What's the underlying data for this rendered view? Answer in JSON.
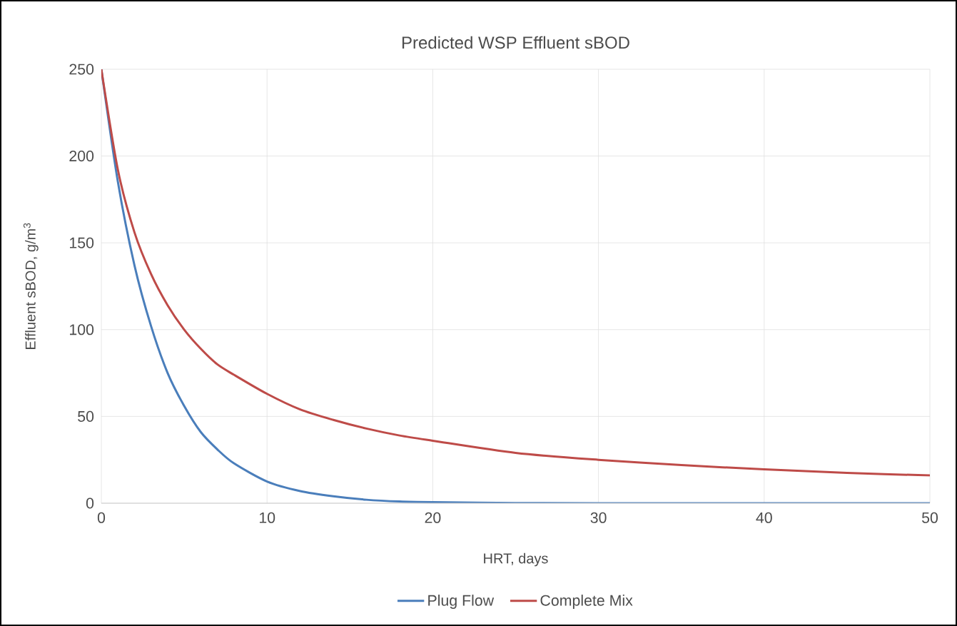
{
  "chart_data": {
    "type": "line",
    "title": "Predicted WSP Effluent sBOD",
    "xlabel": "HRT, days",
    "ylabel": "Effluent sBOD, g/m$^{3}$",
    "xlim": [
      0,
      50
    ],
    "ylim": [
      0,
      250
    ],
    "xticks": [
      0,
      10,
      20,
      30,
      40,
      50
    ],
    "yticks": [
      0,
      50,
      100,
      150,
      200,
      250
    ],
    "grid": true,
    "legend": "bottom",
    "marker": "none",
    "line_style": "solid",
    "series": [
      {
        "name": "Plug Flow",
        "color": "#4a7ebb",
        "x": [
          0,
          1,
          2,
          3,
          4,
          5,
          6,
          7,
          8,
          10,
          12,
          14,
          16,
          18,
          20,
          25,
          30,
          40,
          50
        ],
        "values": [
          250,
          185,
          137,
          102,
          75,
          56,
          41,
          31,
          23,
          12.5,
          7,
          4,
          2,
          1,
          0.6,
          0.1,
          0,
          0,
          0
        ]
      },
      {
        "name": "Complete Mix",
        "color": "#be4b48",
        "x": [
          0,
          1,
          2,
          3,
          4,
          5,
          6,
          7,
          8,
          10,
          12,
          14,
          16,
          18,
          20,
          25,
          30,
          35,
          40,
          45,
          50
        ],
        "values": [
          250,
          192,
          156,
          132,
          114,
          100,
          89,
          80,
          74,
          63,
          54,
          48,
          43,
          39,
          36,
          29,
          25,
          22,
          19.5,
          17.5,
          16
        ]
      }
    ]
  }
}
